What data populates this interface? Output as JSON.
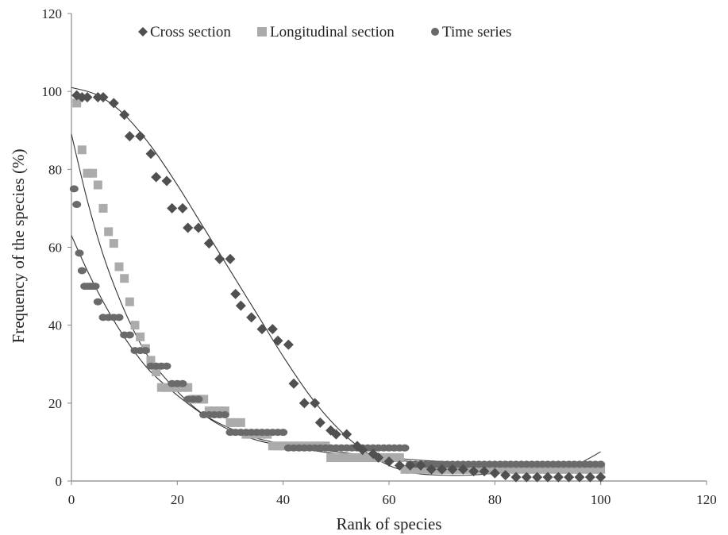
{
  "chart_data": {
    "type": "scatter",
    "title": "",
    "xlabel": "Rank of species",
    "ylabel": "Frequency of the species (%)",
    "xlim": [
      0,
      120
    ],
    "ylim": [
      0,
      120
    ],
    "xticks": [
      0,
      20,
      40,
      60,
      80,
      100,
      120
    ],
    "yticks": [
      0,
      20,
      40,
      60,
      80,
      100,
      120
    ],
    "grid": false,
    "legend_position": "top",
    "series": [
      {
        "name": "Cross section",
        "marker": "diamond",
        "color": "#505050",
        "points": [
          [
            1,
            99
          ],
          [
            2,
            98.5
          ],
          [
            3,
            98.5
          ],
          [
            5,
            98.5
          ],
          [
            6,
            98.5
          ],
          [
            8,
            97
          ],
          [
            10,
            94
          ],
          [
            11,
            88.5
          ],
          [
            13,
            88.5
          ],
          [
            15,
            84
          ],
          [
            16,
            78
          ],
          [
            18,
            77
          ],
          [
            19,
            70
          ],
          [
            21,
            70
          ],
          [
            22,
            65
          ],
          [
            24,
            65
          ],
          [
            26,
            61
          ],
          [
            28,
            57
          ],
          [
            30,
            57
          ],
          [
            31,
            48
          ],
          [
            32,
            45
          ],
          [
            34,
            42
          ],
          [
            36,
            39
          ],
          [
            38,
            39
          ],
          [
            39,
            36
          ],
          [
            41,
            35
          ],
          [
            42,
            25
          ],
          [
            44,
            20
          ],
          [
            46,
            20
          ],
          [
            47,
            15
          ],
          [
            49,
            13
          ],
          [
            50,
            12
          ],
          [
            52,
            12
          ],
          [
            54,
            9
          ],
          [
            55,
            8
          ],
          [
            57,
            7
          ],
          [
            58,
            6
          ],
          [
            60,
            5
          ],
          [
            62,
            4
          ],
          [
            64,
            4
          ],
          [
            66,
            4
          ],
          [
            68,
            3
          ],
          [
            70,
            3
          ],
          [
            72,
            3
          ],
          [
            74,
            3
          ],
          [
            76,
            2.5
          ],
          [
            78,
            2.5
          ],
          [
            80,
            2
          ],
          [
            82,
            1.5
          ],
          [
            84,
            1
          ],
          [
            86,
            1
          ],
          [
            88,
            1
          ],
          [
            90,
            1
          ],
          [
            92,
            1
          ],
          [
            94,
            1
          ],
          [
            96,
            1
          ],
          [
            98,
            1
          ],
          [
            100,
            1
          ]
        ]
      },
      {
        "name": "Longitudinal section",
        "marker": "square",
        "color": "#ababab",
        "points": [
          [
            1,
            97
          ],
          [
            2,
            85
          ],
          [
            3,
            79
          ],
          [
            4,
            79
          ],
          [
            5,
            76
          ],
          [
            6,
            70
          ],
          [
            7,
            64
          ],
          [
            8,
            61
          ],
          [
            9,
            55
          ],
          [
            10,
            52
          ],
          [
            11,
            46
          ],
          [
            12,
            40
          ],
          [
            13,
            37
          ],
          [
            14,
            34
          ],
          [
            15,
            31
          ],
          [
            16,
            28
          ],
          [
            17,
            24
          ],
          [
            18,
            24
          ],
          [
            19,
            24
          ],
          [
            20,
            24
          ],
          [
            21,
            24
          ],
          [
            22,
            24
          ],
          [
            23,
            21
          ],
          [
            24,
            21
          ],
          [
            25,
            21
          ],
          [
            26,
            18
          ],
          [
            27,
            18
          ],
          [
            28,
            18
          ],
          [
            29,
            18
          ],
          [
            30,
            15
          ],
          [
            31,
            15
          ],
          [
            32,
            15
          ],
          [
            33,
            12
          ],
          [
            34,
            12
          ],
          [
            35,
            12
          ],
          [
            36,
            12
          ],
          [
            37,
            12
          ],
          [
            38,
            9
          ],
          [
            39,
            9
          ],
          [
            40,
            9
          ],
          [
            41,
            9
          ],
          [
            42,
            9
          ],
          [
            43,
            9
          ],
          [
            44,
            9
          ],
          [
            45,
            9
          ],
          [
            46,
            9
          ],
          [
            47,
            9
          ],
          [
            48,
            9
          ],
          [
            49,
            6
          ],
          [
            50,
            6
          ],
          [
            51,
            6
          ],
          [
            52,
            6
          ],
          [
            53,
            6
          ],
          [
            54,
            6
          ],
          [
            55,
            6
          ],
          [
            56,
            6
          ],
          [
            57,
            6
          ],
          [
            58,
            6
          ],
          [
            59,
            6
          ],
          [
            60,
            6
          ],
          [
            61,
            6
          ],
          [
            62,
            6
          ],
          [
            63,
            3
          ],
          [
            64,
            3
          ],
          [
            65,
            3
          ],
          [
            66,
            3
          ],
          [
            67,
            3
          ],
          [
            68,
            3
          ],
          [
            69,
            3
          ],
          [
            70,
            3
          ],
          [
            71,
            3
          ],
          [
            72,
            3
          ],
          [
            73,
            3
          ],
          [
            74,
            3
          ],
          [
            75,
            3
          ],
          [
            76,
            3
          ],
          [
            77,
            3
          ],
          [
            78,
            3
          ],
          [
            79,
            3
          ],
          [
            80,
            3
          ],
          [
            81,
            3
          ],
          [
            82,
            3
          ],
          [
            83,
            3
          ],
          [
            84,
            3
          ],
          [
            85,
            3
          ],
          [
            86,
            3
          ],
          [
            87,
            3
          ],
          [
            88,
            3
          ],
          [
            89,
            3
          ],
          [
            90,
            3
          ],
          [
            91,
            3
          ],
          [
            92,
            3
          ],
          [
            93,
            3
          ],
          [
            94,
            3
          ],
          [
            95,
            3
          ],
          [
            96,
            3
          ],
          [
            97,
            3
          ],
          [
            98,
            3
          ],
          [
            99,
            3
          ],
          [
            100,
            3
          ]
        ]
      },
      {
        "name": "Time series",
        "marker": "circle",
        "color": "#6a6a6a",
        "points": [
          [
            0.5,
            75
          ],
          [
            1,
            71
          ],
          [
            1.5,
            58.5
          ],
          [
            2,
            54
          ],
          [
            2.5,
            50
          ],
          [
            3,
            50
          ],
          [
            3.5,
            50
          ],
          [
            4,
            50
          ],
          [
            4.5,
            50
          ],
          [
            5,
            46
          ],
          [
            6,
            42
          ],
          [
            7,
            42
          ],
          [
            8,
            42
          ],
          [
            9,
            42
          ],
          [
            10,
            37.5
          ],
          [
            11,
            37.5
          ],
          [
            12,
            33.5
          ],
          [
            13,
            33.5
          ],
          [
            14,
            33.5
          ],
          [
            15,
            29.5
          ],
          [
            16,
            29.5
          ],
          [
            17,
            29.5
          ],
          [
            18,
            29.5
          ],
          [
            19,
            25
          ],
          [
            20,
            25
          ],
          [
            21,
            25
          ],
          [
            22,
            21
          ],
          [
            23,
            21
          ],
          [
            24,
            21
          ],
          [
            25,
            17
          ],
          [
            26,
            17
          ],
          [
            27,
            17
          ],
          [
            28,
            17
          ],
          [
            29,
            17
          ],
          [
            30,
            12.5
          ],
          [
            31,
            12.5
          ],
          [
            32,
            12.5
          ],
          [
            33,
            12.5
          ],
          [
            34,
            12.5
          ],
          [
            35,
            12.5
          ],
          [
            36,
            12.5
          ],
          [
            37,
            12.5
          ],
          [
            38,
            12.5
          ],
          [
            39,
            12.5
          ],
          [
            40,
            12.5
          ],
          [
            41,
            8.5
          ],
          [
            42,
            8.5
          ],
          [
            43,
            8.5
          ],
          [
            44,
            8.5
          ],
          [
            45,
            8.5
          ],
          [
            46,
            8.5
          ],
          [
            47,
            8.5
          ],
          [
            48,
            8.5
          ],
          [
            49,
            8.5
          ],
          [
            50,
            8.5
          ],
          [
            51,
            8.5
          ],
          [
            52,
            8.5
          ],
          [
            53,
            8.5
          ],
          [
            54,
            8.5
          ],
          [
            55,
            8.5
          ],
          [
            56,
            8.5
          ],
          [
            57,
            8.5
          ],
          [
            58,
            8.5
          ],
          [
            59,
            8.5
          ],
          [
            60,
            8.5
          ],
          [
            61,
            8.5
          ],
          [
            62,
            8.5
          ],
          [
            63,
            8.5
          ],
          [
            64,
            4.3
          ],
          [
            65,
            4.3
          ],
          [
            66,
            4.3
          ],
          [
            67,
            4.3
          ],
          [
            68,
            4.3
          ],
          [
            69,
            4.3
          ],
          [
            70,
            4.3
          ],
          [
            71,
            4.3
          ],
          [
            72,
            4.3
          ],
          [
            73,
            4.3
          ],
          [
            74,
            4.3
          ],
          [
            75,
            4.3
          ],
          [
            76,
            4.3
          ],
          [
            77,
            4.3
          ],
          [
            78,
            4.3
          ],
          [
            79,
            4.3
          ],
          [
            80,
            4.3
          ],
          [
            81,
            4.3
          ],
          [
            82,
            4.3
          ],
          [
            83,
            4.3
          ],
          [
            84,
            4.3
          ],
          [
            85,
            4.3
          ],
          [
            86,
            4.3
          ],
          [
            87,
            4.3
          ],
          [
            88,
            4.3
          ],
          [
            89,
            4.3
          ],
          [
            90,
            4.3
          ],
          [
            91,
            4.3
          ],
          [
            92,
            4.3
          ],
          [
            93,
            4.3
          ],
          [
            94,
            4.3
          ],
          [
            95,
            4.3
          ],
          [
            96,
            4.3
          ],
          [
            97,
            4.3
          ],
          [
            98,
            4.3
          ],
          [
            99,
            4.3
          ],
          [
            100,
            4.3
          ]
        ]
      }
    ],
    "trendlines": [
      {
        "series": "Cross section",
        "color": "#333333",
        "points": [
          [
            0,
            101
          ],
          [
            5,
            99
          ],
          [
            10,
            94
          ],
          [
            15,
            86
          ],
          [
            20,
            76
          ],
          [
            25,
            65
          ],
          [
            30,
            54
          ],
          [
            35,
            43
          ],
          [
            40,
            32
          ],
          [
            45,
            22
          ],
          [
            50,
            14
          ],
          [
            55,
            8
          ],
          [
            60,
            4
          ],
          [
            65,
            2
          ],
          [
            70,
            1.5
          ],
          [
            75,
            1.5
          ],
          [
            80,
            2
          ],
          [
            85,
            2.5
          ],
          [
            90,
            3
          ],
          [
            95,
            4
          ],
          [
            100,
            7.5
          ]
        ]
      },
      {
        "series": "Longitudinal section",
        "color": "#333333",
        "points": [
          [
            0,
            89
          ],
          [
            3,
            72
          ],
          [
            6,
            58
          ],
          [
            9,
            47
          ],
          [
            12,
            38
          ],
          [
            15,
            31
          ],
          [
            20,
            23
          ],
          [
            25,
            17
          ],
          [
            30,
            13
          ],
          [
            35,
            10.5
          ],
          [
            40,
            9
          ],
          [
            45,
            8
          ],
          [
            50,
            7
          ],
          [
            60,
            5.5
          ],
          [
            70,
            4.5
          ],
          [
            80,
            3.8
          ],
          [
            90,
            3.5
          ],
          [
            100,
            3.5
          ]
        ]
      },
      {
        "series": "Time series",
        "color": "#333333",
        "points": [
          [
            0,
            63
          ],
          [
            3,
            54
          ],
          [
            6,
            46
          ],
          [
            9,
            39
          ],
          [
            12,
            33
          ],
          [
            15,
            28
          ],
          [
            20,
            22
          ],
          [
            25,
            17
          ],
          [
            30,
            13.5
          ],
          [
            35,
            11
          ],
          [
            40,
            9.5
          ],
          [
            45,
            8.5
          ],
          [
            50,
            7.5
          ],
          [
            60,
            6
          ],
          [
            70,
            5
          ],
          [
            80,
            4.5
          ],
          [
            90,
            4.5
          ],
          [
            100,
            4.8
          ]
        ]
      }
    ]
  }
}
